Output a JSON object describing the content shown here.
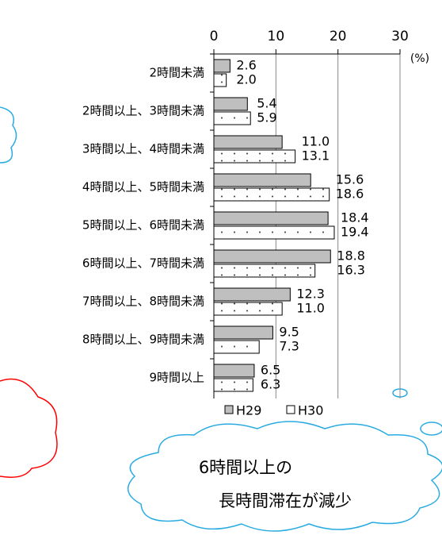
{
  "chart_data": {
    "type": "hbar",
    "categories": [
      "2時間未満",
      "2時間以上、3時間未満",
      "3時間以上、4時間未満",
      "4時間以上、5時間未満",
      "5時間以上、6時間未満",
      "6時間以上、7時間未満",
      "7時間以上、8時間未満",
      "8時間以上、9時間未満",
      "9時間以上"
    ],
    "series": [
      {
        "name": "H29",
        "color": "#bfbfbf",
        "label_color": "#000000",
        "pattern": "solid",
        "values": [
          2.6,
          5.4,
          11.0,
          15.6,
          18.4,
          18.8,
          12.3,
          9.5,
          6.5
        ],
        "value_labels": [
          "2.6",
          "5.4",
          "11.0",
          "15.6",
          "18.4",
          "18.8",
          "12.3",
          "9.5",
          "6.5"
        ]
      },
      {
        "name": "H30",
        "color": "#ffffff",
        "label_color": "#ff0000",
        "pattern": "dots",
        "values": [
          2.0,
          5.9,
          13.1,
          18.6,
          19.4,
          16.3,
          11.0,
          7.3,
          6.3
        ],
        "value_labels": [
          "2.0",
          "5.9",
          "13.1",
          "18.6",
          "19.4",
          "16.3",
          "11.0",
          "7.3",
          "6.3"
        ]
      }
    ],
    "xlim": [
      0,
      30
    ],
    "xticks": [
      0,
      10,
      20,
      30
    ],
    "xlabel": "(%)",
    "grid": true,
    "annotations": [
      "6時間以上の",
      "長時間滞在が減少"
    ]
  }
}
